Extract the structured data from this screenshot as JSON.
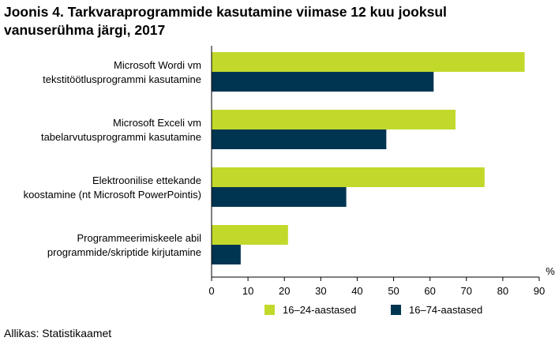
{
  "page": {
    "title_line1": "Joonis 4. Tarkvaraprogrammide kasutamine viimase 12 kuu jooksul",
    "title_line2": "vanuserühma järgi, 2017",
    "source": "Allikas: Statistikaamet"
  },
  "chart_data": {
    "type": "bar",
    "orientation": "horizontal",
    "categories": [
      [
        "Microsoft Wordi vm",
        "tekstitöötlusprogrammi kasutamine"
      ],
      [
        "Microsoft Exceli vm",
        "tabelarvutusprogrammi kasutamine"
      ],
      [
        "Elektroonilise ettekande",
        "koostamine (nt Microsoft PowerPointis)"
      ],
      [
        "Programmeerimiskeele abil",
        "programmide/skriptide kirjutamine"
      ]
    ],
    "series": [
      {
        "name": "16–24-aastased",
        "color": "#c2d92b",
        "values": [
          86,
          67,
          75,
          21
        ]
      },
      {
        "name": "16–74-aastased",
        "color": "#003552",
        "values": [
          61,
          48,
          37,
          8
        ]
      }
    ],
    "xlabel": "%",
    "xlim": [
      0,
      90
    ],
    "xticks": [
      0,
      10,
      20,
      30,
      40,
      50,
      60,
      70,
      80,
      90
    ],
    "grid": false,
    "legend_position": "bottom"
  }
}
